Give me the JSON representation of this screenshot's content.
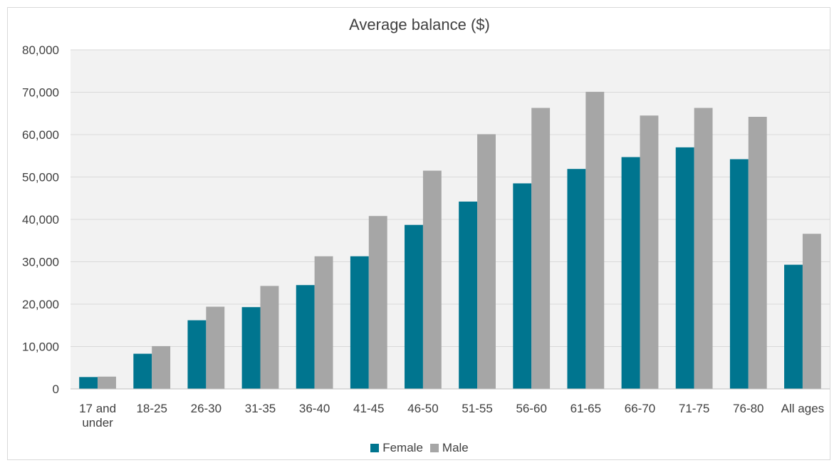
{
  "chart_data": {
    "type": "bar",
    "title": "Average balance ($)",
    "categories": [
      "17 and under",
      "18-25",
      "26-30",
      "31-35",
      "36-40",
      "41-45",
      "46-50",
      "51-55",
      "56-60",
      "61-65",
      "66-70",
      "71-75",
      "76-80",
      "All ages"
    ],
    "category_lines": [
      [
        "17 and",
        "under"
      ],
      [
        "18-25"
      ],
      [
        "26-30"
      ],
      [
        "31-35"
      ],
      [
        "36-40"
      ],
      [
        "41-45"
      ],
      [
        "46-50"
      ],
      [
        "51-55"
      ],
      [
        "56-60"
      ],
      [
        "61-65"
      ],
      [
        "66-70"
      ],
      [
        "71-75"
      ],
      [
        "76-80"
      ],
      [
        "All ages"
      ]
    ],
    "series": [
      {
        "name": "Female",
        "color": "#00758f",
        "values": [
          2800,
          8300,
          16200,
          19300,
          24500,
          31300,
          38700,
          44200,
          48500,
          51900,
          54700,
          57000,
          54200,
          29300
        ]
      },
      {
        "name": "Male",
        "color": "#a6a6a6",
        "values": [
          2900,
          10100,
          19400,
          24300,
          31300,
          40800,
          51500,
          60100,
          66300,
          70100,
          64500,
          66300,
          64200,
          36600
        ]
      }
    ],
    "ylim": [
      0,
      80000
    ],
    "yticks": [
      "0",
      "10,000",
      "20,000",
      "30,000",
      "40,000",
      "50,000",
      "60,000",
      "70,000",
      "80,000"
    ],
    "ytick_values": [
      0,
      10000,
      20000,
      30000,
      40000,
      50000,
      60000,
      70000,
      80000
    ],
    "grid": true,
    "legend_position": "bottom",
    "plot_background": "#f2f2f2",
    "gridline_color": "#d9d9d9"
  }
}
